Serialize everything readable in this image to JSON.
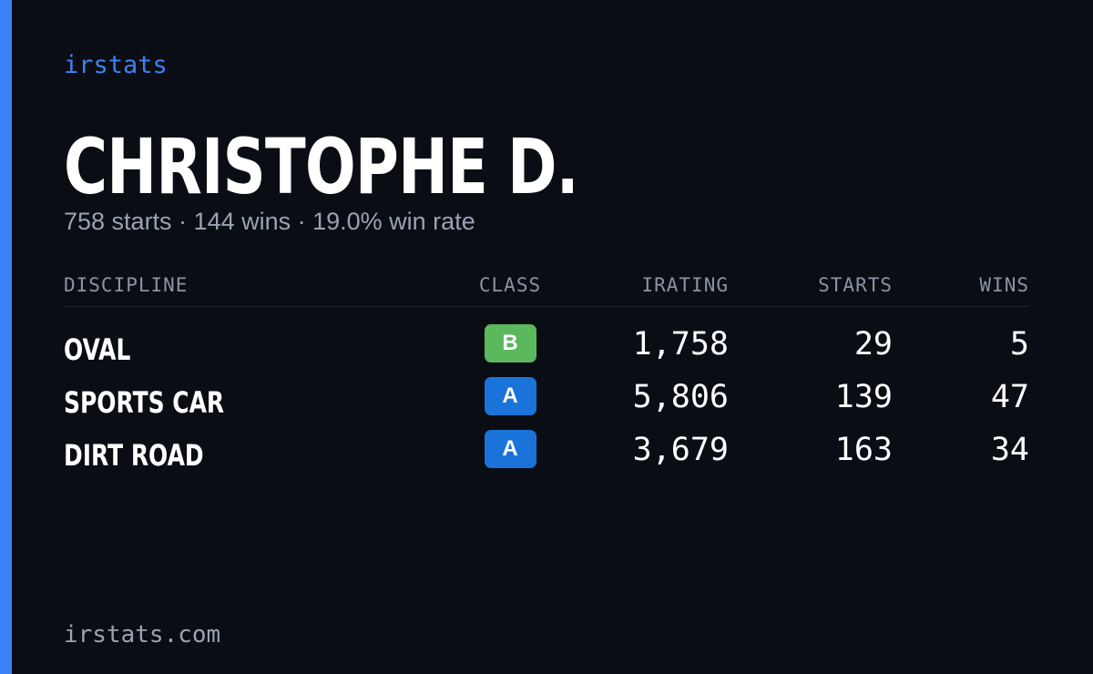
{
  "brand": "irstats",
  "profile": {
    "name": "CHRISTOPHE D.",
    "summary": "758 starts · 144 wins · 19.0% win rate"
  },
  "table": {
    "columns": [
      "DISCIPLINE",
      "CLASS",
      "IRATING",
      "STARTS",
      "WINS"
    ],
    "rows": [
      {
        "discipline": "OVAL",
        "class": "B",
        "class_color": "#5cb85c",
        "irating": "1,758",
        "starts": "29",
        "wins": "5"
      },
      {
        "discipline": "SPORTS CAR",
        "class": "A",
        "class_color": "#1a73d9",
        "irating": "5,806",
        "starts": "139",
        "wins": "47"
      },
      {
        "discipline": "DIRT ROAD",
        "class": "A",
        "class_color": "#1a73d9",
        "irating": "3,679",
        "starts": "163",
        "wins": "34"
      }
    ]
  },
  "footer": "irstats.com"
}
